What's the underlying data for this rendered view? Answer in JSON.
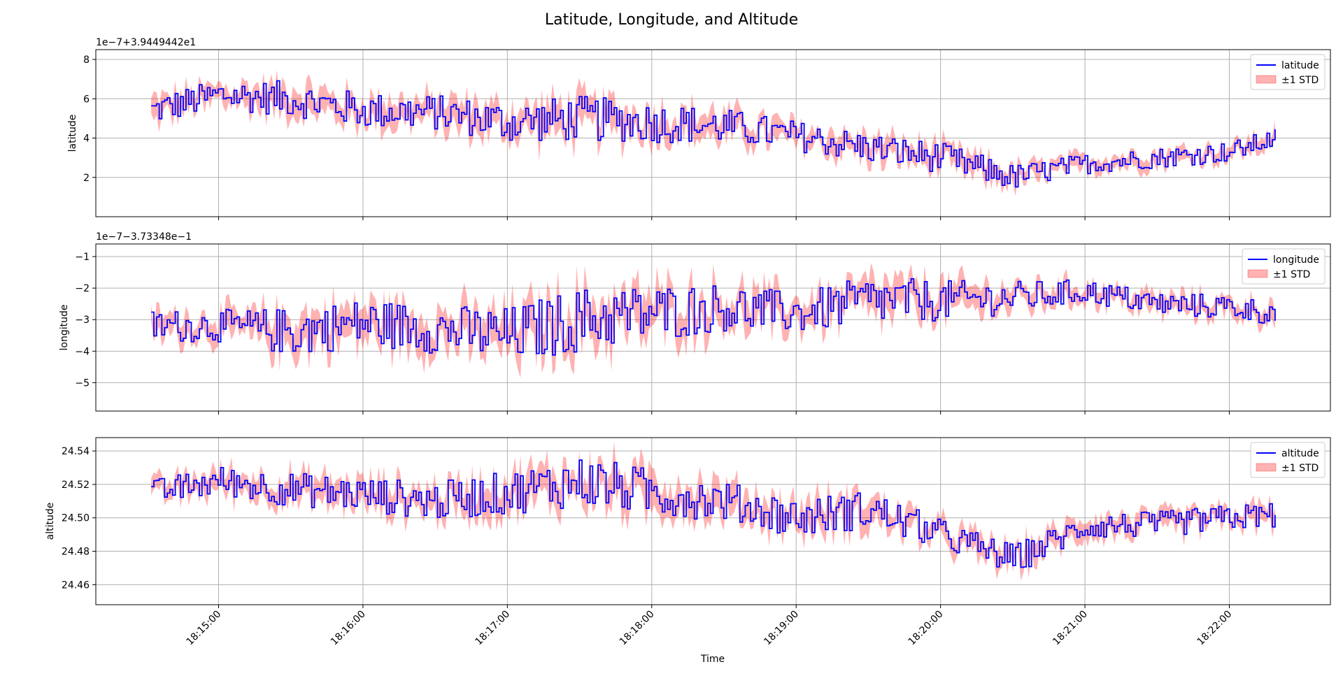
{
  "title": "Latitude, Longitude, and Altitude",
  "xlabel": "Time",
  "x_ticks": [
    "18:15:00",
    "18:16:00",
    "18:17:00",
    "18:18:00",
    "18:19:00",
    "18:20:00",
    "18:21:00",
    "18:22:00"
  ],
  "colors": {
    "line": "#0000ff",
    "band": "#ff0000",
    "grid": "#b0b0b0"
  },
  "chart_data": [
    {
      "type": "line",
      "ylabel": "latitude",
      "offset_text": "1e−7+3.9449442e1",
      "y_ticks": [
        "2",
        "4",
        "6",
        "8"
      ],
      "ylim": [
        0.0,
        8.5
      ],
      "xlim": [
        "18:14:09",
        "18:22:42"
      ],
      "legend": {
        "line": "latitude",
        "band": "±1 STD",
        "position": "upper right"
      },
      "grid": true,
      "x": [
        "18:14:32",
        "18:15:00",
        "18:15:30",
        "18:16:00",
        "18:16:30",
        "18:17:00",
        "18:17:30",
        "18:18:00",
        "18:18:30",
        "18:19:00",
        "18:19:30",
        "18:20:00",
        "18:20:30",
        "18:21:00",
        "18:21:30",
        "18:22:00",
        "18:22:19"
      ],
      "series": [
        {
          "name": "latitude",
          "values": [
            5.4,
            6.2,
            6.0,
            5.4,
            5.3,
            4.8,
            5.0,
            4.8,
            4.6,
            4.1,
            3.5,
            3.0,
            2.0,
            2.7,
            3.0,
            3.3,
            4.0
          ]
        },
        {
          "name": "±1 STD",
          "values": [
            0.6,
            0.6,
            0.7,
            0.7,
            0.7,
            0.8,
            0.9,
            0.8,
            0.7,
            0.6,
            0.6,
            0.6,
            0.5,
            0.4,
            0.4,
            0.4,
            0.4
          ]
        }
      ]
    },
    {
      "type": "line",
      "ylabel": "longitude",
      "offset_text": "1e−7−3.73348e−1",
      "y_ticks": [
        "−5",
        "−4",
        "−3",
        "−2",
        "−1"
      ],
      "ylim": [
        -5.9,
        -0.6
      ],
      "xlim": [
        "18:14:09",
        "18:22:42"
      ],
      "legend": {
        "line": "longitude",
        "band": "±1 STD",
        "position": "upper right"
      },
      "grid": true,
      "x": [
        "18:14:32",
        "18:15:00",
        "18:15:30",
        "18:16:00",
        "18:16:30",
        "18:17:00",
        "18:17:30",
        "18:18:00",
        "18:18:30",
        "18:19:00",
        "18:19:30",
        "18:20:00",
        "18:20:30",
        "18:21:00",
        "18:21:30",
        "18:22:00",
        "18:22:19"
      ],
      "series": [
        {
          "name": "longitude",
          "values": [
            -3.2,
            -3.2,
            -3.4,
            -3.1,
            -3.3,
            -3.5,
            -3.0,
            -2.8,
            -2.6,
            -2.8,
            -2.4,
            -2.4,
            -2.3,
            -2.1,
            -2.5,
            -2.6,
            -2.8
          ]
        },
        {
          "name": "±1 STD",
          "values": [
            0.4,
            0.4,
            0.6,
            0.6,
            0.6,
            0.7,
            0.8,
            0.7,
            0.6,
            0.5,
            0.6,
            0.5,
            0.4,
            0.3,
            0.3,
            0.3,
            0.3
          ]
        }
      ]
    },
    {
      "type": "line",
      "ylabel": "altitude",
      "offset_text": "",
      "y_ticks": [
        "24.46",
        "24.48",
        "24.50",
        "24.52",
        "24.54"
      ],
      "ylim": [
        24.448,
        24.548
      ],
      "xlim": [
        "18:14:09",
        "18:22:42"
      ],
      "legend": {
        "line": "altitude",
        "band": "±1 STD",
        "position": "upper right"
      },
      "grid": true,
      "x": [
        "18:14:32",
        "18:15:00",
        "18:15:30",
        "18:16:00",
        "18:16:30",
        "18:17:00",
        "18:17:30",
        "18:18:00",
        "18:18:30",
        "18:19:00",
        "18:19:30",
        "18:20:00",
        "18:20:30",
        "18:21:00",
        "18:21:30",
        "18:22:00",
        "18:22:19"
      ],
      "series": [
        {
          "name": "altitude",
          "values": [
            24.515,
            24.522,
            24.517,
            24.514,
            24.51,
            24.515,
            24.522,
            24.515,
            24.51,
            24.5,
            24.505,
            24.49,
            24.475,
            24.495,
            24.496,
            24.5,
            24.502
          ]
        },
        {
          "name": "±1 STD",
          "values": [
            0.006,
            0.007,
            0.008,
            0.008,
            0.009,
            0.01,
            0.012,
            0.011,
            0.009,
            0.009,
            0.009,
            0.007,
            0.007,
            0.006,
            0.006,
            0.006,
            0.006
          ]
        }
      ]
    }
  ]
}
